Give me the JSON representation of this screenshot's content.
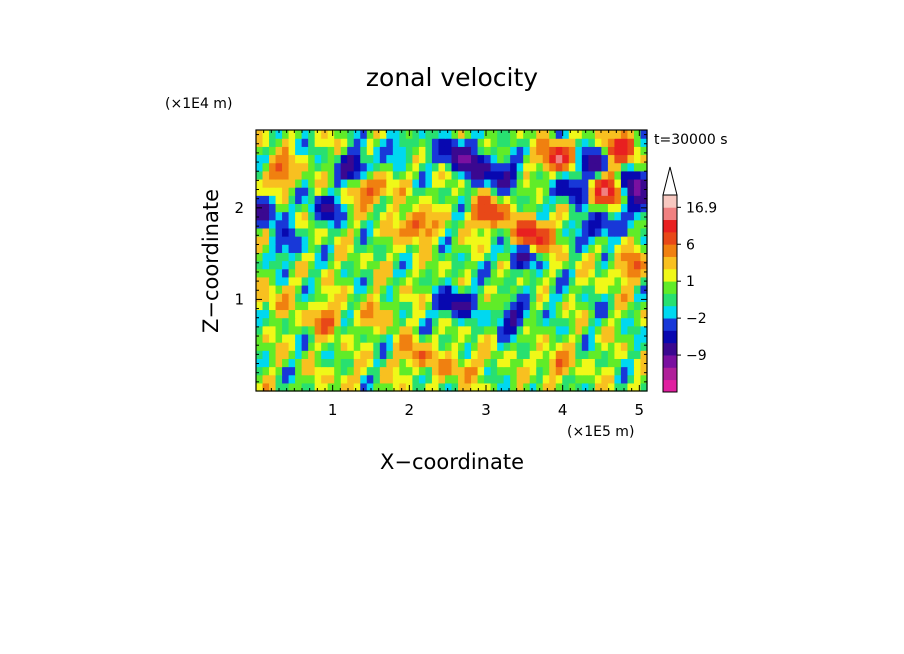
{
  "chart_data": {
    "type": "heatmap",
    "title": "zonal velocity",
    "xlabel": "X−coordinate",
    "ylabel": "Z−coordinate",
    "x_unit": "(×1E5 m)",
    "y_unit": "(×1E4 m)",
    "time_label": "t=30000 s",
    "xlim": [
      0,
      5.1
    ],
    "ylim": [
      0,
      2.85
    ],
    "x_ticks": [
      "1",
      "2",
      "3",
      "4",
      "5"
    ],
    "x_tick_values": [
      1,
      2,
      3,
      4,
      5
    ],
    "y_ticks": [
      "1",
      "2"
    ],
    "y_tick_values": [
      1,
      2
    ],
    "colorbar": {
      "labels": [
        "16.9",
        "6",
        "1",
        "−2",
        "−9"
      ],
      "label_values": [
        16.9,
        6,
        1,
        -2,
        -9
      ],
      "levels": [
        -16,
        -12,
        -9,
        -6,
        -4,
        -2,
        -1,
        0,
        1,
        2,
        4,
        6,
        9,
        12,
        16.9
      ],
      "colors": [
        "#e020a0",
        "#b0209a",
        "#7a10a0",
        "#3a0890",
        "#0808b0",
        "#1838d8",
        "#00d8f0",
        "#28e070",
        "#60ec28",
        "#f0f818",
        "#f8c020",
        "#f08010",
        "#e84818",
        "#e82020",
        "#f08080",
        "#f8c8c0"
      ],
      "over_color": "#ffffff"
    },
    "field_description": "zonal velocity field on X (0-5.1 x1E5 m) by Z (0-2.85 x1E4 m); values roughly -8 to 12, with negative (blue) cells concentrated in upper layers",
    "field": {
      "nx": 60,
      "nz": 32,
      "blobs": [
        {
          "x": 1.3,
          "z": 2.45,
          "v": -8
        },
        {
          "x": 0.9,
          "z": 2.0,
          "v": -6
        },
        {
          "x": 0.1,
          "z": 1.95,
          "v": -7
        },
        {
          "x": 2.6,
          "z": 2.6,
          "v": -8
        },
        {
          "x": 2.9,
          "z": 2.45,
          "v": -7
        },
        {
          "x": 3.25,
          "z": 2.35,
          "v": -6
        },
        {
          "x": 4.35,
          "z": 2.5,
          "v": -9
        },
        {
          "x": 4.95,
          "z": 2.25,
          "v": -9
        },
        {
          "x": 5.05,
          "z": 2.0,
          "v": -6
        },
        {
          "x": 2.6,
          "z": 0.95,
          "v": -8
        },
        {
          "x": 3.35,
          "z": 0.8,
          "v": -6
        },
        {
          "x": 3.45,
          "z": 1.5,
          "v": -7
        },
        {
          "x": 4.45,
          "z": 1.8,
          "v": -7
        },
        {
          "x": 4.1,
          "z": 2.2,
          "v": -7
        },
        {
          "x": 1.9,
          "z": 2.7,
          "v": -3
        },
        {
          "x": 0.4,
          "z": 1.6,
          "v": -4
        },
        {
          "x": 3.6,
          "z": 1.7,
          "v": 12
        },
        {
          "x": 3.95,
          "z": 2.55,
          "v": 11
        },
        {
          "x": 4.55,
          "z": 2.2,
          "v": 11
        },
        {
          "x": 4.75,
          "z": 2.65,
          "v": 9
        },
        {
          "x": 2.1,
          "z": 1.8,
          "v": 7
        },
        {
          "x": 0.3,
          "z": 2.4,
          "v": 6
        },
        {
          "x": 1.5,
          "z": 2.2,
          "v": 7
        },
        {
          "x": 3.05,
          "z": 1.95,
          "v": 8
        },
        {
          "x": 0.9,
          "z": 0.8,
          "v": 5
        },
        {
          "x": 2.1,
          "z": 0.4,
          "v": 5
        },
        {
          "x": 2.7,
          "z": 0.25,
          "v": 4
        },
        {
          "x": 3.9,
          "z": 0.3,
          "v": 4
        },
        {
          "x": 1.6,
          "z": 0.85,
          "v": 3
        },
        {
          "x": 4.4,
          "z": 0.9,
          "v": -1
        },
        {
          "x": 3.8,
          "z": 1.1,
          "v": -1.5
        },
        {
          "x": 2.8,
          "z": 1.25,
          "v": -1.2
        },
        {
          "x": 4.9,
          "z": 1.35,
          "v": 5
        },
        {
          "x": 0.2,
          "z": 1.0,
          "v": 3
        },
        {
          "x": 1.1,
          "z": 0.15,
          "v": 1.5
        }
      ]
    }
  }
}
